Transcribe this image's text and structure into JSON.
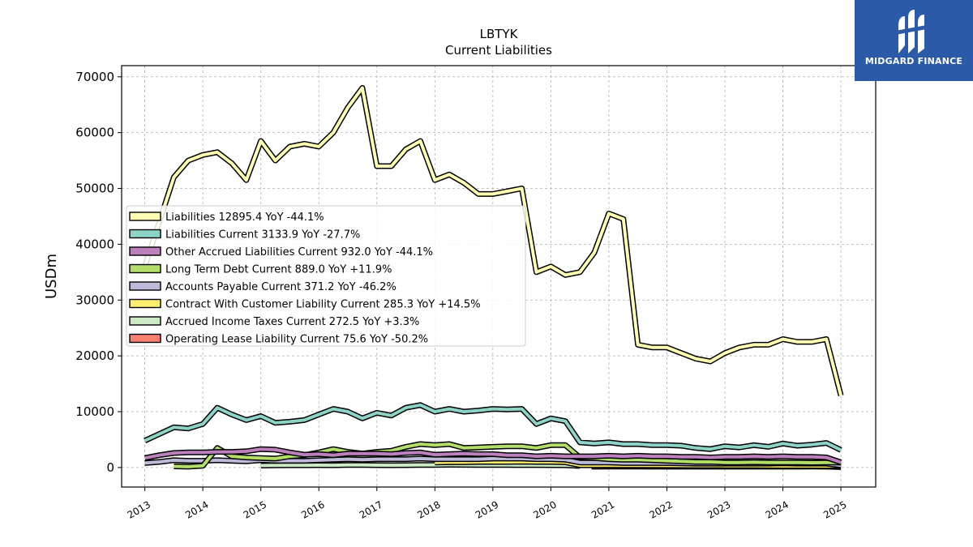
{
  "chart_data": {
    "type": "line",
    "title": "LBTYK",
    "subtitle": "Current  Liabilities",
    "ylabel": "USDm",
    "xlabel": "",
    "xlim": [
      2012.6,
      2025.6
    ],
    "ylim": [
      -3500,
      72000
    ],
    "yticks": [
      0,
      10000,
      20000,
      30000,
      40000,
      50000,
      60000,
      70000
    ],
    "xticks": [
      2013,
      2014,
      2015,
      2016,
      2017,
      2018,
      2019,
      2020,
      2021,
      2022,
      2023,
      2024,
      2025
    ],
    "grid": true,
    "legend_position": "center-left",
    "series": [
      {
        "name": "Liabilities  12895.4 YoY -44.1%",
        "color": "#ffffb3",
        "x": [
          2013.0,
          2013.25,
          2013.5,
          2013.75,
          2014.0,
          2014.25,
          2014.5,
          2014.75,
          2015.0,
          2015.25,
          2015.5,
          2015.75,
          2016.0,
          2016.25,
          2016.5,
          2016.75,
          2017.0,
          2017.25,
          2017.5,
          2017.75,
          2018.0,
          2018.25,
          2018.5,
          2018.75,
          2019.0,
          2019.25,
          2019.5,
          2019.75,
          2020.0,
          2020.25,
          2020.5,
          2020.75,
          2021.0,
          2021.25,
          2021.5,
          2021.75,
          2022.0,
          2022.25,
          2022.5,
          2022.75,
          2023.0,
          2023.25,
          2023.5,
          2023.75,
          2024.0,
          2024.25,
          2024.5,
          2024.75,
          2025.0
        ],
        "values": [
          36000,
          44000,
          52000,
          55000,
          56000,
          56500,
          54500,
          51500,
          58500,
          55000,
          57500,
          58000,
          57500,
          60000,
          64500,
          68000,
          54000,
          54000,
          57000,
          58500,
          51500,
          52500,
          51000,
          49000,
          49000,
          49500,
          50000,
          35000,
          36000,
          34500,
          35000,
          38500,
          45500,
          44500,
          22000,
          21500,
          21500,
          20500,
          19500,
          19000,
          20500,
          21500,
          22000,
          22000,
          23000,
          22500,
          22500,
          23000,
          12895
        ]
      },
      {
        "name": "Liabilities Current  3133.9 YoY -27.7%",
        "color": "#8dd3c7",
        "x": [
          2013.0,
          2013.25,
          2013.5,
          2013.75,
          2014.0,
          2014.25,
          2014.5,
          2014.75,
          2015.0,
          2015.25,
          2015.5,
          2015.75,
          2016.0,
          2016.25,
          2016.5,
          2016.75,
          2017.0,
          2017.25,
          2017.5,
          2017.75,
          2018.0,
          2018.25,
          2018.5,
          2018.75,
          2019.0,
          2019.25,
          2019.5,
          2019.75,
          2020.0,
          2020.25,
          2020.5,
          2020.75,
          2021.0,
          2021.25,
          2021.5,
          2021.75,
          2022.0,
          2022.25,
          2022.5,
          2022.75,
          2023.0,
          2023.25,
          2023.5,
          2023.75,
          2024.0,
          2024.25,
          2024.5,
          2024.75,
          2025.0
        ],
        "values": [
          4800,
          6000,
          7200,
          7000,
          7800,
          10700,
          9500,
          8500,
          9200,
          8000,
          8200,
          8500,
          9500,
          10500,
          10000,
          8800,
          9800,
          9300,
          10700,
          11200,
          10000,
          10500,
          10000,
          10200,
          10500,
          10400,
          10500,
          7800,
          8800,
          8300,
          4500,
          4300,
          4500,
          4200,
          4200,
          4000,
          4000,
          3900,
          3500,
          3300,
          3800,
          3600,
          4000,
          3700,
          4300,
          3900,
          4100,
          4400,
          3134
        ]
      },
      {
        "name": "Other Accrued Liabilities Current  932.0 YoY -44.1%",
        "color": "#bc80bd",
        "x": [
          2013.0,
          2013.25,
          2013.5,
          2013.75,
          2014.0,
          2014.25,
          2014.5,
          2014.75,
          2015.0,
          2015.25,
          2015.5,
          2015.75,
          2016.0,
          2016.25,
          2016.5,
          2016.75,
          2017.0,
          2017.25,
          2017.5,
          2017.75,
          2018.0,
          2018.25,
          2018.5,
          2018.75,
          2019.0,
          2019.25,
          2019.5,
          2019.75,
          2020.0,
          2020.25,
          2020.5,
          2020.75,
          2021.0,
          2021.25,
          2021.5,
          2021.75,
          2022.0,
          2022.25,
          2022.5,
          2022.75,
          2023.0,
          2023.25,
          2023.5,
          2023.75,
          2024.0,
          2024.25,
          2024.5,
          2024.75,
          2025.0
        ],
        "values": [
          1700,
          2200,
          2600,
          2700,
          2700,
          2800,
          2800,
          2900,
          3300,
          3200,
          2700,
          2300,
          2400,
          2200,
          2500,
          2500,
          2500,
          2400,
          2600,
          2700,
          2300,
          2400,
          2500,
          2400,
          2400,
          2200,
          2200,
          2000,
          2100,
          2000,
          2000,
          2000,
          2100,
          2000,
          2100,
          2000,
          2000,
          1900,
          1900,
          1800,
          1900,
          1900,
          2000,
          1900,
          2000,
          1900,
          1900,
          1800,
          932
        ]
      },
      {
        "name": "Long Term Debt Current  889.0 YoY +11.9%",
        "color": "#b3de69",
        "x": [
          2013.5,
          2013.75,
          2014.0,
          2014.25,
          2014.5,
          2014.75,
          2015.0,
          2015.25,
          2015.5,
          2015.75,
          2016.0,
          2016.25,
          2016.5,
          2016.75,
          2017.0,
          2017.25,
          2017.5,
          2017.75,
          2018.0,
          2018.25,
          2018.5,
          2018.75,
          2019.0,
          2019.25,
          2019.5,
          2019.75,
          2020.0,
          2020.25,
          2020.5,
          2020.75,
          2021.0,
          2021.25,
          2021.5,
          2021.75,
          2022.0,
          2022.25,
          2022.5,
          2022.75,
          2023.0,
          2023.25,
          2023.5,
          2023.75,
          2024.0,
          2024.25,
          2024.5,
          2024.75,
          2025.0
        ],
        "values": [
          200,
          150,
          300,
          3500,
          2000,
          1800,
          1700,
          1600,
          2000,
          2200,
          2700,
          3300,
          2800,
          2500,
          2800,
          3000,
          3700,
          4200,
          4000,
          4200,
          3500,
          3600,
          3700,
          3800,
          3800,
          3500,
          4000,
          4000,
          1800,
          1700,
          1500,
          1400,
          1400,
          1300,
          1200,
          1100,
          1000,
          1000,
          900,
          900,
          950,
          900,
          900,
          900,
          850,
          900,
          889
        ]
      },
      {
        "name": "Accounts Payable Current  371.2 YoY -46.2%",
        "color": "#bebada",
        "x": [
          2013.0,
          2013.25,
          2013.5,
          2013.75,
          2014.0,
          2014.25,
          2014.5,
          2014.75,
          2015.0,
          2015.25,
          2015.5,
          2015.75,
          2016.0,
          2016.25,
          2016.5,
          2016.75,
          2017.0,
          2017.25,
          2017.5,
          2017.75,
          2018.0,
          2018.25,
          2018.5,
          2018.75,
          2019.0,
          2019.25,
          2019.5,
          2019.75,
          2020.0,
          2020.25,
          2020.5,
          2020.75,
          2021.0,
          2021.25,
          2021.5,
          2021.75,
          2022.0,
          2022.25,
          2022.5,
          2022.75,
          2023.0,
          2023.25,
          2023.5,
          2023.75,
          2024.0,
          2024.25,
          2024.5,
          2024.75,
          2025.0
        ],
        "values": [
          800,
          1000,
          1300,
          1200,
          1200,
          1300,
          1200,
          1100,
          1300,
          1200,
          1200,
          1200,
          1300,
          1400,
          1500,
          1400,
          1500,
          1500,
          1500,
          1600,
          1500,
          1500,
          1500,
          1500,
          1600,
          1600,
          1600,
          1500,
          1500,
          1400,
          900,
          900,
          900,
          800,
          800,
          800,
          800,
          750,
          700,
          700,
          700,
          700,
          700,
          700,
          750,
          700,
          700,
          700,
          371
        ]
      },
      {
        "name": "Contract With Customer Liability Current  285.3 YoY +14.5%",
        "color": "#ffed6f",
        "x": [
          2018.0,
          2018.25,
          2018.5,
          2018.75,
          2019.0,
          2019.25,
          2019.5,
          2019.75,
          2020.0,
          2020.25,
          2020.5,
          2020.75,
          2021.0,
          2021.25,
          2021.5,
          2021.75,
          2022.0,
          2022.25,
          2022.5,
          2022.75,
          2023.0,
          2023.25,
          2023.5,
          2023.75,
          2024.0,
          2024.25,
          2024.5,
          2024.75,
          2025.0
        ],
        "values": [
          900,
          950,
          950,
          1000,
          1000,
          1000,
          1050,
          1000,
          1000,
          950,
          400,
          400,
          400,
          380,
          380,
          370,
          360,
          350,
          340,
          330,
          320,
          310,
          300,
          290,
          280,
          270,
          270,
          260,
          285
        ]
      },
      {
        "name": "Accrued Income Taxes Current  272.5 YoY +3.3%",
        "color": "#ccebc5",
        "x": [
          2015.0,
          2015.25,
          2015.5,
          2015.75,
          2016.0,
          2016.25,
          2016.5,
          2016.75,
          2017.0,
          2017.25,
          2017.5,
          2017.75,
          2018.0,
          2018.25,
          2018.5,
          2018.75,
          2019.0,
          2019.25,
          2019.5,
          2019.75,
          2020.0,
          2020.25,
          2020.5
        ],
        "values": [
          350,
          380,
          400,
          400,
          420,
          400,
          450,
          450,
          420,
          400,
          420,
          450,
          460,
          500,
          480,
          470,
          460,
          450,
          440,
          430,
          420,
          410,
          272
        ]
      },
      {
        "name": "Operating Lease Liability Current  75.6 YoY -50.2%",
        "color": "#fb8072",
        "x": [
          2020.7,
          2021.0,
          2021.25,
          2021.5,
          2021.75,
          2022.0,
          2022.25,
          2022.5,
          2022.75,
          2023.0,
          2023.25,
          2023.5,
          2023.75,
          2024.0,
          2024.25,
          2024.5,
          2024.75,
          2025.0
        ],
        "values": [
          150,
          160,
          160,
          155,
          150,
          150,
          150,
          150,
          150,
          150,
          150,
          150,
          150,
          150,
          150,
          155,
          150,
          76
        ]
      }
    ]
  },
  "brand": {
    "name": "MIDGARD FINANCE",
    "color": "#2a5aa8"
  }
}
